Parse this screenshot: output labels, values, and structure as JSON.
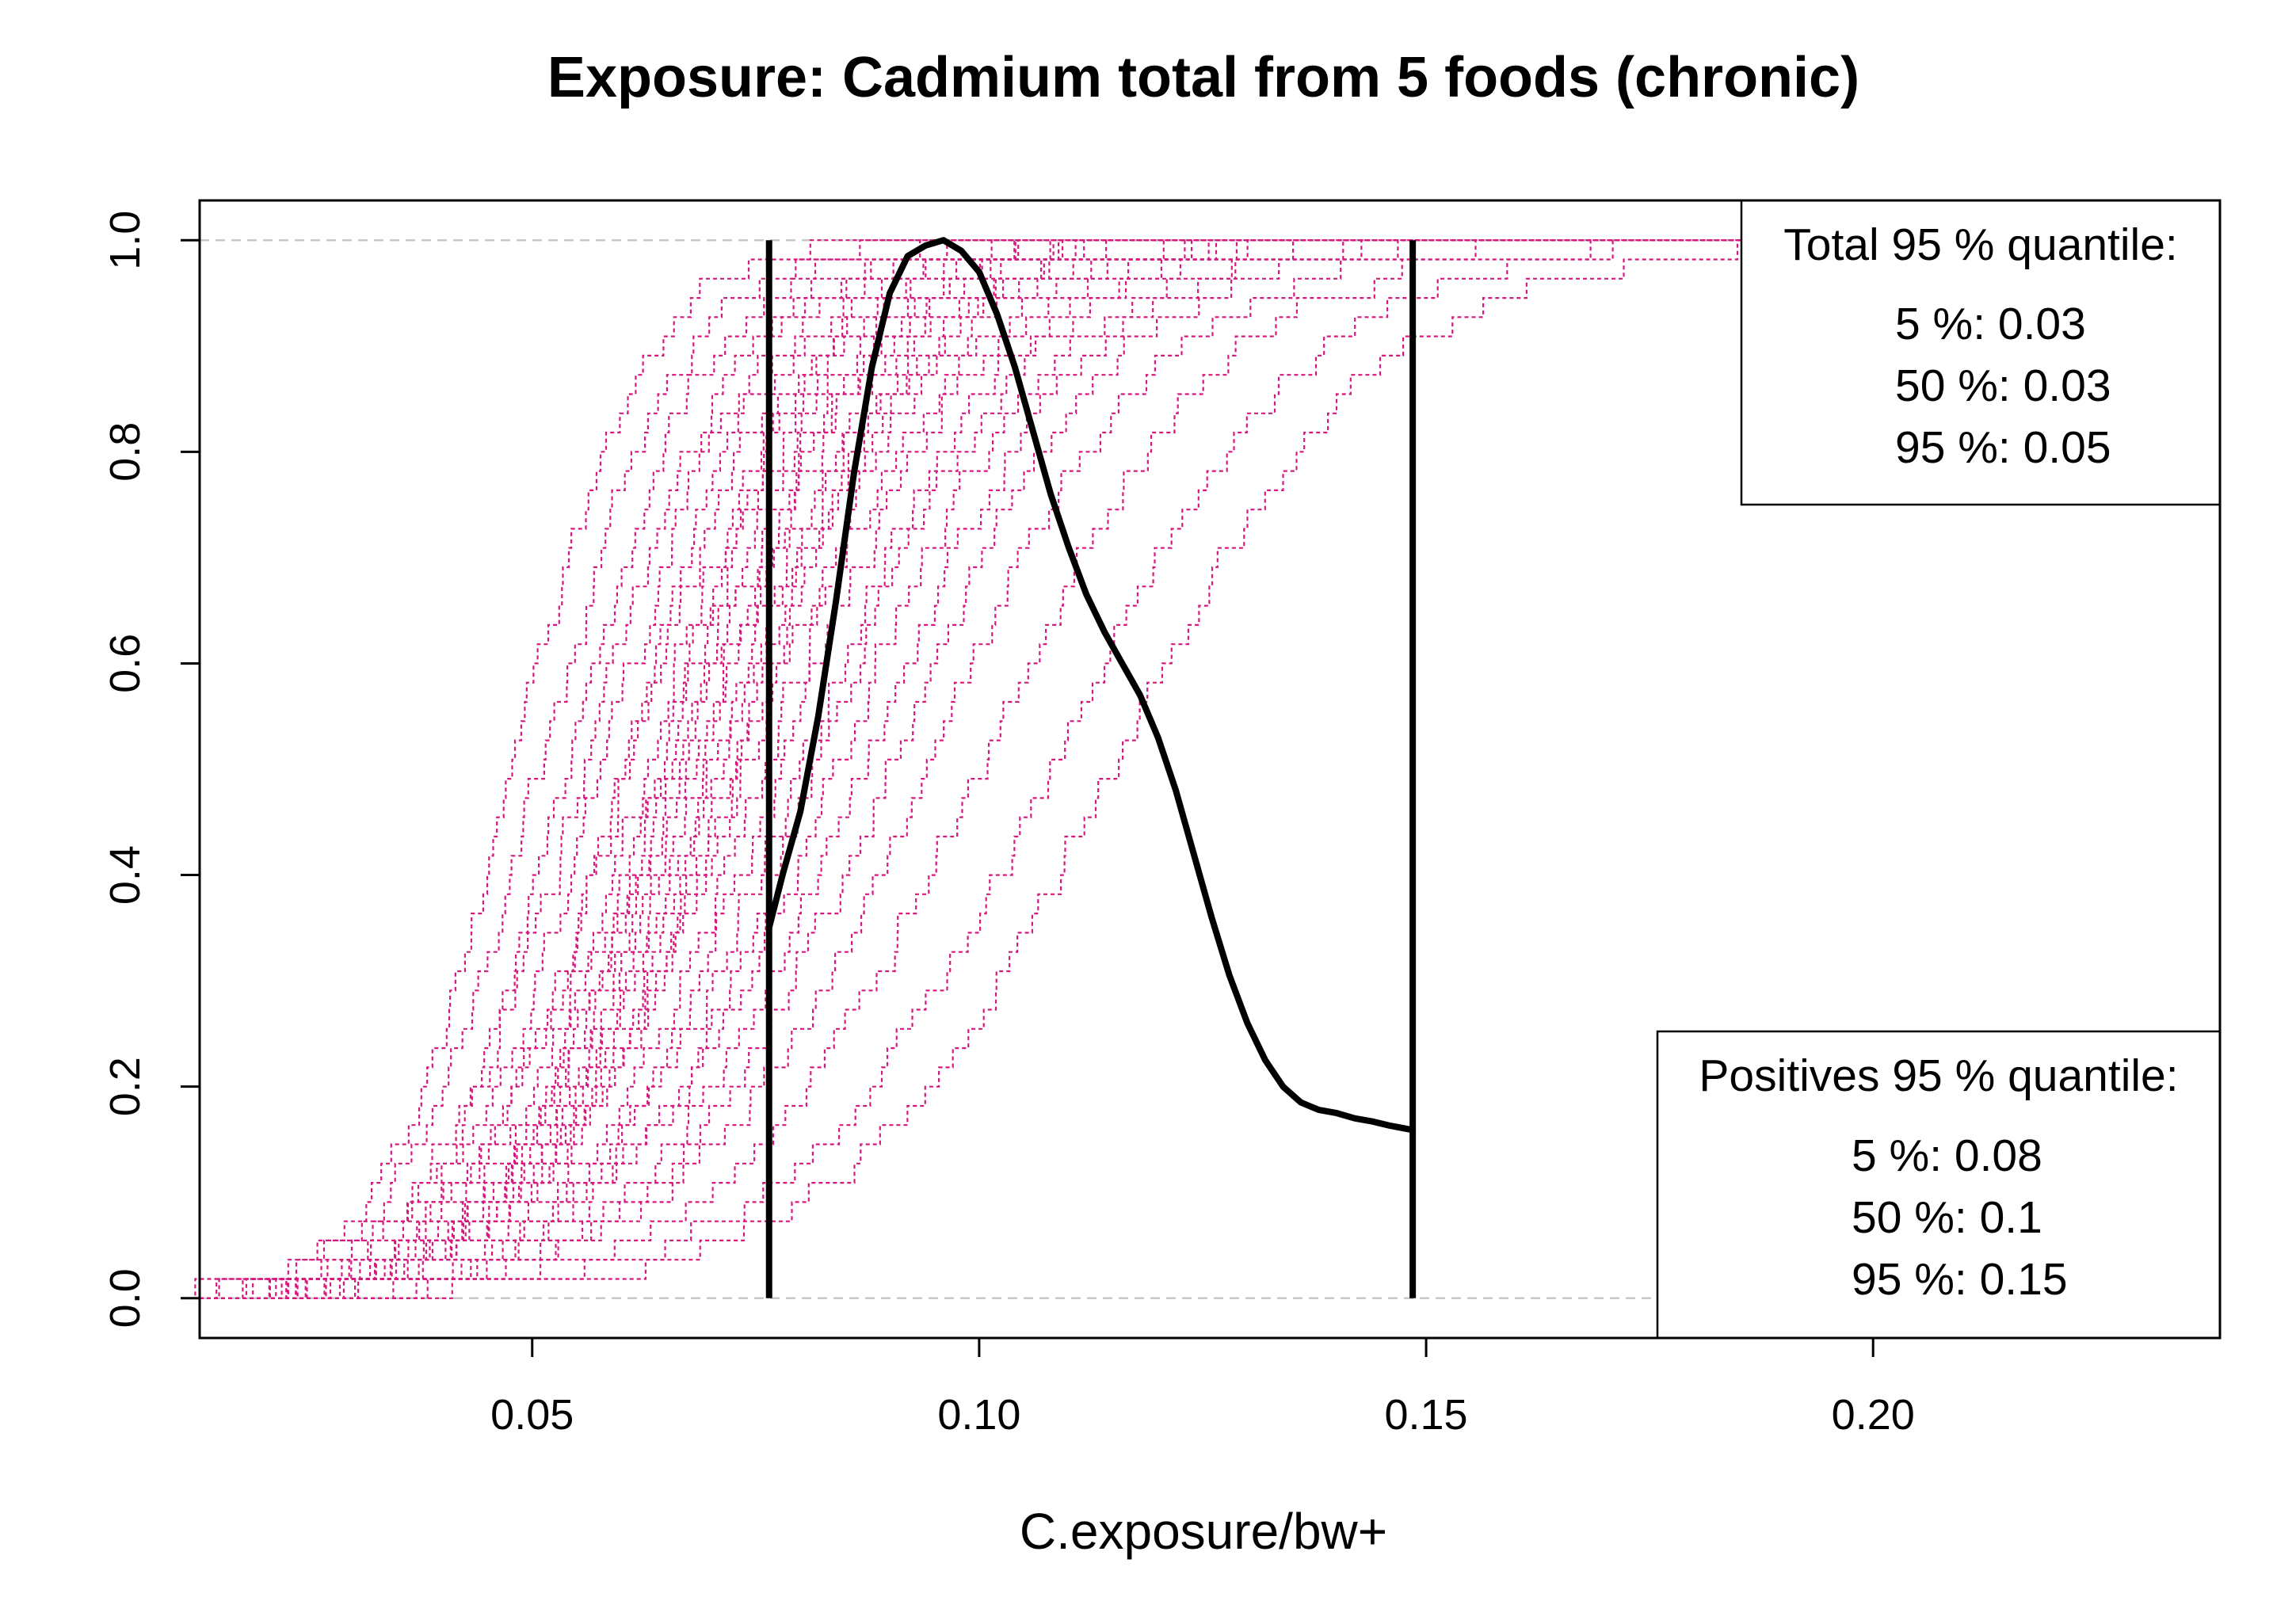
{
  "chart_data": {
    "type": "line",
    "title": "Exposure: Cadmium total from 5 foods (chronic)",
    "xlabel": "C.exposure/bw+",
    "ylabel": "",
    "xlim": [
      0.0128,
      0.2388
    ],
    "ylim": [
      -0.0376,
      1.0376
    ],
    "x_ticks": [
      0.05,
      0.1,
      0.15,
      0.2
    ],
    "x_tick_labels": [
      "0.05",
      "0.10",
      "0.15",
      "0.20"
    ],
    "y_ticks": [
      0.0,
      0.2,
      0.4,
      0.6,
      0.8,
      1.0
    ],
    "y_tick_labels": [
      "0.0",
      "0.2",
      "0.4",
      "0.6",
      "0.8",
      "1.0"
    ],
    "reference_lines_y": [
      0.0,
      1.0
    ],
    "vertical_lines_x": [
      0.0765,
      0.1485
    ],
    "ecdf_series_style": {
      "color": "#d6187e",
      "dash": "dotted",
      "count": 30,
      "start_x": 0.0128
    },
    "ecdf_series_midpoints": [
      0.048,
      0.051,
      0.054,
      0.056,
      0.058,
      0.06,
      0.061,
      0.063,
      0.064,
      0.065,
      0.066,
      0.067,
      0.068,
      0.069,
      0.07,
      0.071,
      0.072,
      0.073,
      0.074,
      0.076,
      0.078,
      0.08,
      0.082,
      0.084,
      0.087,
      0.09,
      0.094,
      0.1,
      0.108,
      0.115
    ],
    "ecdf_series_spreads": [
      0.012,
      0.013,
      0.013,
      0.014,
      0.014,
      0.014,
      0.015,
      0.015,
      0.015,
      0.015,
      0.016,
      0.016,
      0.016,
      0.016,
      0.017,
      0.017,
      0.017,
      0.017,
      0.018,
      0.018,
      0.018,
      0.019,
      0.019,
      0.02,
      0.02,
      0.021,
      0.022,
      0.023,
      0.024,
      0.025
    ],
    "density_curve": {
      "x": [
        0.0765,
        0.078,
        0.08,
        0.082,
        0.084,
        0.086,
        0.088,
        0.09,
        0.092,
        0.094,
        0.096,
        0.098,
        0.1,
        0.102,
        0.104,
        0.106,
        0.108,
        0.11,
        0.112,
        0.114,
        0.116,
        0.118,
        0.12,
        0.122,
        0.124,
        0.126,
        0.128,
        0.13,
        0.132,
        0.134,
        0.136,
        0.138,
        0.14,
        0.142,
        0.144,
        0.146,
        0.1485
      ],
      "y": [
        0.35,
        0.4,
        0.46,
        0.55,
        0.66,
        0.78,
        0.88,
        0.95,
        0.985,
        0.995,
        1.0,
        0.99,
        0.97,
        0.93,
        0.88,
        0.82,
        0.76,
        0.71,
        0.665,
        0.63,
        0.6,
        0.57,
        0.53,
        0.48,
        0.42,
        0.36,
        0.305,
        0.26,
        0.225,
        0.2,
        0.185,
        0.178,
        0.175,
        0.17,
        0.167,
        0.163,
        0.159
      ]
    },
    "legends": [
      {
        "position": "top-right",
        "title": "Total 95 % quantile:",
        "entries": [
          "5 %: 0.03",
          "50 %: 0.03",
          "95 %: 0.05"
        ]
      },
      {
        "position": "bottom-right",
        "title": "Positives 95 % quantile:",
        "entries": [
          "5 %: 0.08",
          "50 %: 0.1",
          "95 %: 0.15"
        ]
      }
    ]
  }
}
